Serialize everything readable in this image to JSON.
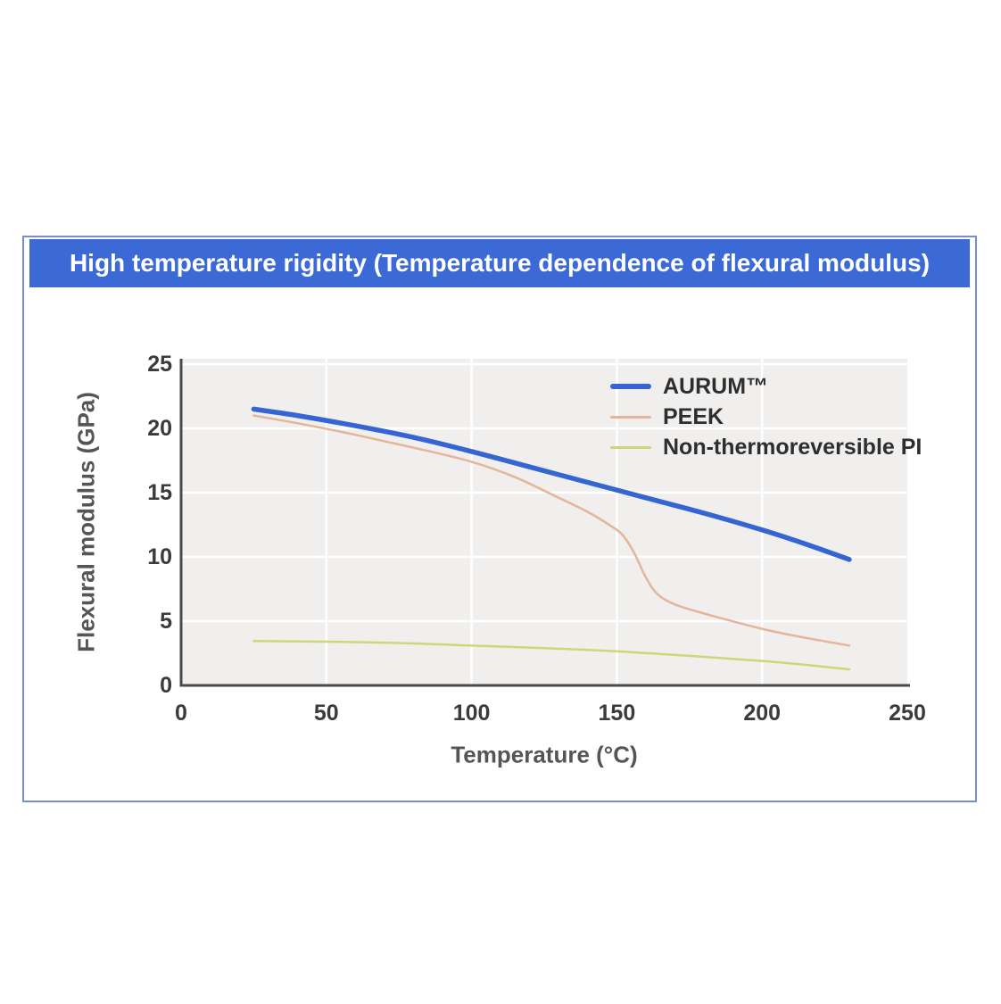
{
  "panel": {
    "title": "High temperature rigidity (Temperature dependence of flexural modulus)",
    "header_bg": "#3b69d6",
    "border_color": "#7a8cd0"
  },
  "chart_data": {
    "type": "line",
    "title": "High temperature rigidity (Temperature dependence of flexural modulus)",
    "xlabel": "Temperature (°C)",
    "ylabel": "Flexural modulus (GPa)",
    "xlim": [
      0,
      250
    ],
    "ylim": [
      0,
      25.4
    ],
    "xticks": [
      0,
      50,
      100,
      150,
      200,
      250
    ],
    "yticks": [
      0,
      5,
      10,
      15,
      20,
      25
    ],
    "grid": true,
    "plot_bg": "#f0efed",
    "grid_color": "#ffffff",
    "axis_color": "#4a4a4a",
    "legend_position": "inside upper right",
    "series": [
      {
        "name": "AURUM™",
        "color": "#3565d2",
        "line_width": 5.5,
        "points": [
          [
            25,
            21.5
          ],
          [
            40,
            21.0
          ],
          [
            60,
            20.2
          ],
          [
            80,
            19.3
          ],
          [
            100,
            18.2
          ],
          [
            120,
            17.0
          ],
          [
            140,
            15.8
          ],
          [
            160,
            14.6
          ],
          [
            180,
            13.4
          ],
          [
            200,
            12.1
          ],
          [
            215,
            11.0
          ],
          [
            230,
            9.8
          ]
        ]
      },
      {
        "name": "PEEK",
        "color": "#e3b59b",
        "line_width": 2.5,
        "points": [
          [
            25,
            21.0
          ],
          [
            40,
            20.4
          ],
          [
            60,
            19.5
          ],
          [
            80,
            18.5
          ],
          [
            100,
            17.4
          ],
          [
            115,
            16.2
          ],
          [
            130,
            14.6
          ],
          [
            140,
            13.5
          ],
          [
            148,
            12.4
          ],
          [
            152,
            11.7
          ],
          [
            156,
            10.3
          ],
          [
            160,
            8.4
          ],
          [
            164,
            7.1
          ],
          [
            170,
            6.3
          ],
          [
            180,
            5.6
          ],
          [
            200,
            4.4
          ],
          [
            215,
            3.7
          ],
          [
            230,
            3.1
          ]
        ]
      },
      {
        "name": "Non-thermoreversible PI",
        "color": "#ccd878",
        "line_width": 2.5,
        "points": [
          [
            25,
            3.45
          ],
          [
            50,
            3.4
          ],
          [
            75,
            3.3
          ],
          [
            100,
            3.1
          ],
          [
            125,
            2.9
          ],
          [
            150,
            2.65
          ],
          [
            175,
            2.3
          ],
          [
            200,
            1.9
          ],
          [
            215,
            1.6
          ],
          [
            230,
            1.25
          ]
        ]
      }
    ]
  }
}
